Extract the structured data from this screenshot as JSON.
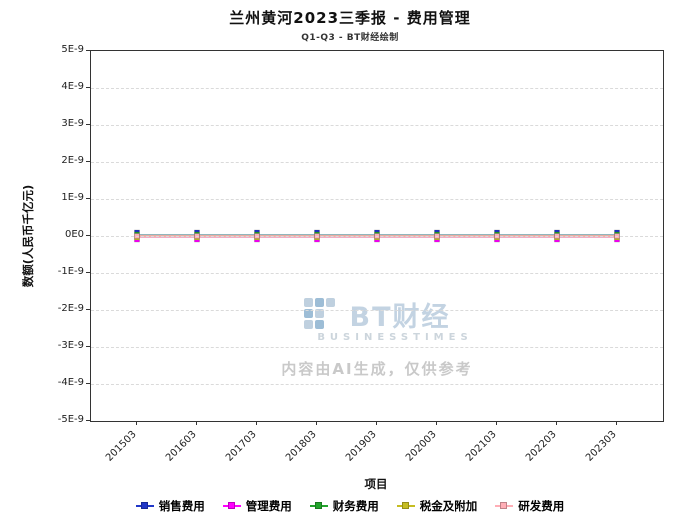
{
  "page": {
    "title": "兰州黄河2023三季报 - 费用管理",
    "subtitle": "Q1-Q3 - BT财经绘制"
  },
  "watermark": {
    "brand_cn": "BT财经",
    "brand_en": "BUSINESSTIMES",
    "disclaimer": "内容由AI生成，仅供参考"
  },
  "chart_data": {
    "type": "line",
    "title": "兰州黄河2023三季报 - 费用管理",
    "subtitle": "Q1-Q3 - BT财经绘制",
    "xlabel": "项目",
    "ylabel": "数额(人民币千亿元)",
    "categories": [
      "201503",
      "201603",
      "201703",
      "201803",
      "201903",
      "202003",
      "202103",
      "202203",
      "202303"
    ],
    "series": [
      {
        "name": "销售费用",
        "color": "#2137c8",
        "values": [
          0,
          0,
          0,
          0,
          0,
          0,
          0,
          0,
          0
        ]
      },
      {
        "name": "管理费用",
        "color": "#ff00ff",
        "values": [
          0,
          0,
          0,
          0,
          0,
          0,
          0,
          0,
          0
        ]
      },
      {
        "name": "财务费用",
        "color": "#22a32b",
        "values": [
          0,
          0,
          0,
          0,
          0,
          0,
          0,
          0,
          0
        ]
      },
      {
        "name": "税金及附加",
        "color": "#c6bd22",
        "values": [
          0,
          0,
          0,
          0,
          0,
          0,
          0,
          0,
          0
        ]
      },
      {
        "name": "研发费用",
        "color": "#ffaeb6",
        "values": [
          0,
          0,
          0,
          0,
          0,
          0,
          0,
          0,
          0
        ]
      }
    ],
    "ylim": [
      -5e-09,
      5e-09
    ],
    "y_ticks": [
      5e-09,
      4e-09,
      3e-09,
      2e-09,
      1e-09,
      0,
      -1e-09,
      -2e-09,
      -3e-09,
      -4e-09,
      -5e-09
    ],
    "y_tick_labels": [
      "5E-9",
      "4E-9",
      "3E-9",
      "2E-9",
      "1E-9",
      "0E0",
      "-1E-9",
      "-2E-9",
      "-3E-9",
      "-4E-9",
      "-5E-9"
    ],
    "grid": true,
    "legend_position": "bottom"
  }
}
